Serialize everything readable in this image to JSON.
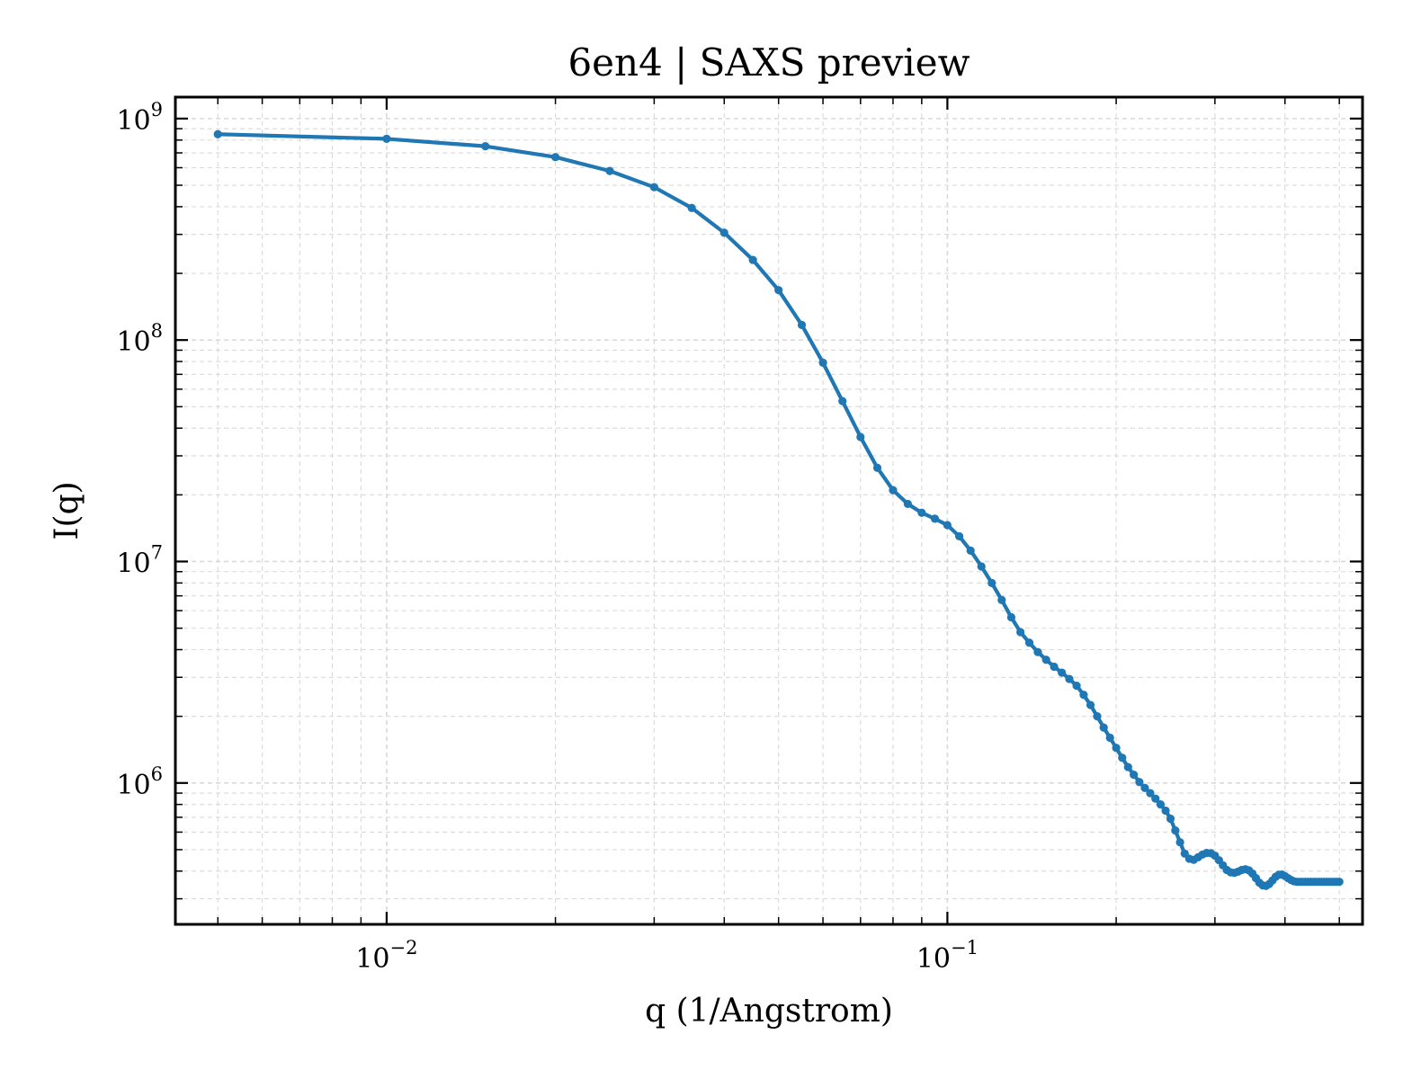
{
  "chart_data": {
    "type": "line",
    "title": "6en4 | SAXS preview",
    "xlabel": "q (1/Angstrom)",
    "ylabel": "I(q)",
    "xscale": "log",
    "yscale": "log",
    "xlim": [
      0.0042,
      0.55
    ],
    "ylim": [
      230000,
      1250000000
    ],
    "grid": true,
    "legend": "none",
    "colors": {
      "line": "#1f77b4",
      "grid": "#d9d9d9",
      "axes": "#000000"
    },
    "xticks": [
      {
        "base": "10",
        "exp": "−2",
        "value": 0.01
      },
      {
        "base": "10",
        "exp": "−1",
        "value": 0.1
      }
    ],
    "yticks": [
      {
        "base": "10",
        "exp": "6",
        "value": 1000000
      },
      {
        "base": "10",
        "exp": "7",
        "value": 10000000
      },
      {
        "base": "10",
        "exp": "8",
        "value": 100000000
      },
      {
        "base": "10",
        "exp": "9",
        "value": 1000000000
      }
    ],
    "series": [
      {
        "x": [
          0.005,
          0.01,
          0.015,
          0.02,
          0.025,
          0.03,
          0.035,
          0.04,
          0.045,
          0.05,
          0.055,
          0.06,
          0.065,
          0.07,
          0.075,
          0.08,
          0.085,
          0.09,
          0.095,
          0.1,
          0.105,
          0.11,
          0.115,
          0.12,
          0.125,
          0.13,
          0.135,
          0.14,
          0.145,
          0.15,
          0.155,
          0.16,
          0.165,
          0.17,
          0.175,
          0.18,
          0.185,
          0.19,
          0.195,
          0.2,
          0.205,
          0.21,
          0.215,
          0.22,
          0.225,
          0.23,
          0.235,
          0.24,
          0.245,
          0.25,
          0.255,
          0.26,
          0.265,
          0.27,
          0.275,
          0.28,
          0.285,
          0.29,
          0.295,
          0.3,
          0.305,
          0.31,
          0.315,
          0.32,
          0.325,
          0.33,
          0.335,
          0.34,
          0.345,
          0.35,
          0.355,
          0.36,
          0.365,
          0.37,
          0.375,
          0.38,
          0.385,
          0.39,
          0.395,
          0.4,
          0.405,
          0.41,
          0.415,
          0.42,
          0.425,
          0.43,
          0.435,
          0.44,
          0.445,
          0.45,
          0.455,
          0.46,
          0.465,
          0.47,
          0.475,
          0.48,
          0.485,
          0.49,
          0.495,
          0.5
        ],
        "y": [
          850000000,
          810000000,
          750000000,
          670000000,
          580000000,
          490000000,
          395000000,
          305000000,
          230000000,
          168000000,
          117000000,
          79000000,
          53000000,
          36500000,
          26500000,
          21000000,
          18200000,
          16600000,
          15600000,
          14600000,
          13000000,
          11200000,
          9500000,
          8000000,
          6700000,
          5600000,
          4800000,
          4300000,
          3900000,
          3600000,
          3350000,
          3150000,
          2950000,
          2750000,
          2500000,
          2250000,
          2000000,
          1780000,
          1600000,
          1440000,
          1300000,
          1180000,
          1090000,
          1010000,
          950000,
          900000,
          850000,
          800000,
          750000,
          690000,
          610000,
          540000,
          480000,
          455000,
          450000,
          462000,
          475000,
          483000,
          482000,
          470000,
          448000,
          425000,
          405000,
          395000,
          393000,
          398000,
          405000,
          408000,
          403000,
          390000,
          372000,
          355000,
          345000,
          343000,
          350000,
          363000,
          377000,
          385000,
          386000,
          380000,
          372000,
          365000,
          360000,
          358000,
          358000,
          358000,
          358000,
          358000,
          358000,
          358000,
          358000,
          358000,
          358000,
          358000,
          358000,
          358000,
          358000,
          358000,
          358000,
          358000
        ]
      }
    ]
  }
}
